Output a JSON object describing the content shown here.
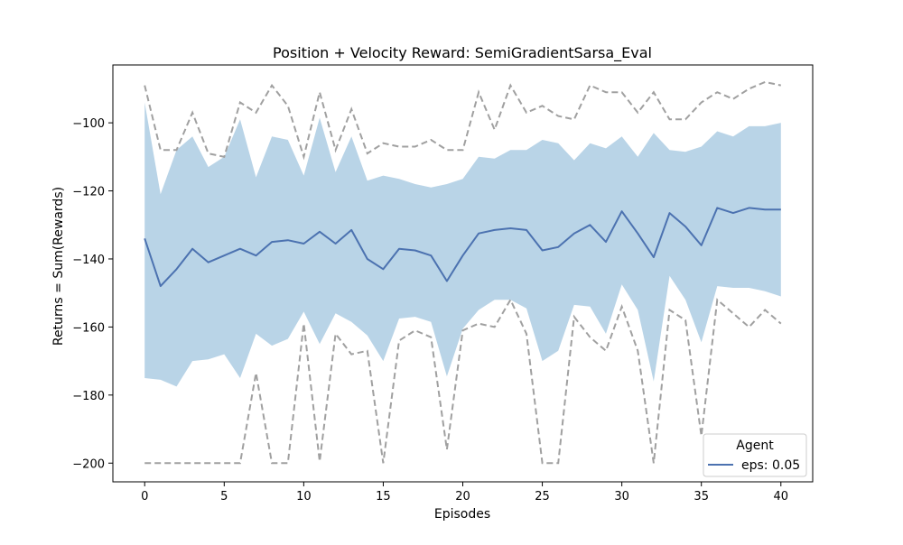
{
  "chart_data": {
    "type": "line",
    "title": "Position + Velocity Reward: SemiGradientSarsa_Eval",
    "xlabel": "Episodes",
    "ylabel": "Returns = Sum(Rewards)",
    "xlim": [
      -2,
      42
    ],
    "ylim": [
      -205.5,
      -83
    ],
    "x_ticks": [
      0,
      5,
      10,
      15,
      20,
      25,
      30,
      35,
      40
    ],
    "y_ticks": [
      -200,
      -180,
      -160,
      -140,
      -120,
      -100
    ],
    "grid": false,
    "legend": {
      "title": "Agent",
      "position": "lower-right",
      "entries": [
        "eps: 0.05"
      ]
    },
    "colors": {
      "mean": "#4c72b0",
      "band": "#b9d4e7",
      "bounds": "#a0a0a0"
    },
    "x": [
      0,
      1,
      2,
      3,
      4,
      5,
      6,
      7,
      8,
      9,
      10,
      11,
      12,
      13,
      14,
      15,
      16,
      17,
      18,
      19,
      20,
      21,
      22,
      23,
      24,
      25,
      26,
      27,
      28,
      29,
      30,
      31,
      32,
      33,
      34,
      35,
      36,
      37,
      38,
      39,
      40
    ],
    "series": [
      {
        "name": "eps: 0.05",
        "values": [
          -134,
          -148,
          -143,
          -137,
          -141,
          -139,
          -137,
          -139,
          -135,
          -134.5,
          -135.5,
          -132,
          -135.5,
          -131.5,
          -140,
          -143,
          -137,
          -137.5,
          -139,
          -146.5,
          -139,
          -132.5,
          -131.5,
          -131,
          -131.5,
          -137.5,
          -136.5,
          -132.5,
          -130,
          -135,
          -126,
          -132.5,
          -139.5,
          -126.5,
          -130.5,
          -136,
          -125,
          -126.5,
          -125,
          -125.5,
          -125.5
        ]
      }
    ],
    "band": {
      "upper": [
        -94,
        -121,
        -108,
        -104,
        -113,
        -110,
        -99,
        -116,
        -104,
        -105,
        -115.5,
        -98.5,
        -114.5,
        -104,
        -117,
        -115.5,
        -116.5,
        -118,
        -119,
        -118,
        -116.5,
        -110,
        -110.5,
        -108,
        -108,
        -105,
        -106,
        -111,
        -106,
        -107.5,
        -104,
        -110,
        -103,
        -108,
        -108.5,
        -107,
        -102.5,
        -104,
        -101,
        -101,
        -100
      ],
      "lower": [
        -175,
        -175.5,
        -177.5,
        -170,
        -169.5,
        -168,
        -175,
        -162,
        -165.5,
        -163.5,
        -155.5,
        -165,
        -156,
        -158.5,
        -162.5,
        -170,
        -157.5,
        -157,
        -158.5,
        -174.5,
        -160.5,
        -155,
        -152,
        -152,
        -154.5,
        -170,
        -167,
        -153.5,
        -154,
        -162,
        -147.5,
        -155,
        -176,
        -145,
        -152,
        -164.5,
        -148,
        -148.5,
        -148.5,
        -149.5,
        -151
      ]
    },
    "bounds": {
      "max": [
        -89,
        -108,
        -108,
        -97,
        -109,
        -110,
        -94,
        -97,
        -89,
        -95,
        -110,
        -91,
        -108,
        -96,
        -109,
        -106,
        -107,
        -107,
        -105,
        -108,
        -108,
        -91,
        -102,
        -89,
        -97,
        -95,
        -98,
        -99,
        -89,
        -91,
        -91,
        -97,
        -91,
        -99,
        -99,
        -94,
        -91,
        -93,
        -90,
        -88,
        -89
      ],
      "min": [
        -200,
        -200,
        -200,
        -200,
        -200,
        -200,
        -200,
        -173.5,
        -200,
        -200,
        -159,
        -199.5,
        -162,
        -168,
        -167,
        -200,
        -164,
        -161,
        -163,
        -196,
        -161,
        -159,
        -160,
        -152,
        -162,
        -200,
        -200,
        -157,
        -163,
        -167,
        -154,
        -167,
        -200,
        -155,
        -158,
        -192,
        -152,
        -156,
        -160,
        -155,
        -159
      ]
    }
  }
}
